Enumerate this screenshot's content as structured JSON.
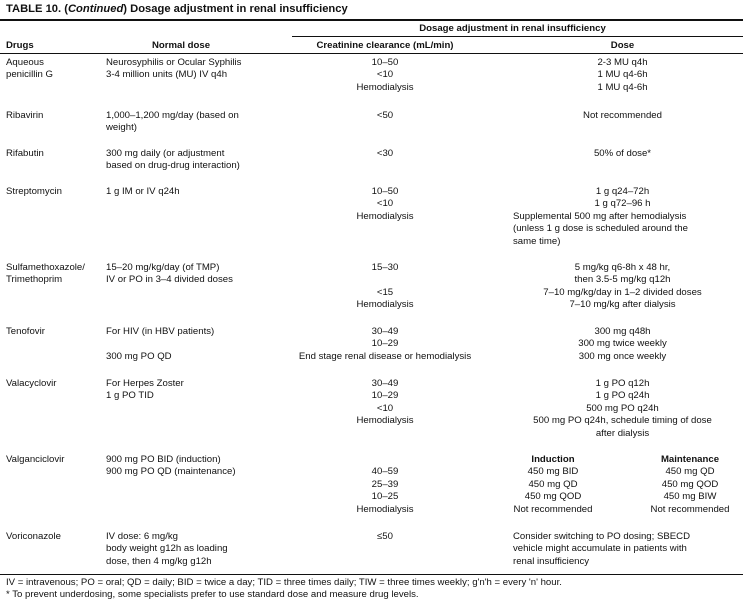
{
  "title": {
    "label": "TABLE 10.",
    "italic": "Continued",
    "rest": "Dosage adjustment in renal insufficiency"
  },
  "header": {
    "group": "Dosage adjustment in renal insufficiency",
    "drugs": "Drugs",
    "normal_dose": "Normal dose",
    "creatinine": "Creatinine clearance (mL/min)",
    "dose": "Dose"
  },
  "rows": [
    {
      "drug": [
        "Aqueous",
        "penicillin G"
      ],
      "normal": [
        "Neurosyphilis or Ocular Syphilis",
        "3-4 million units (MU) IV q4h"
      ],
      "creat": [
        "10–50",
        "<10",
        "Hemodialysis"
      ],
      "dose": [
        "2-3 MU q4h",
        "1 MU q4-6h",
        "1 MU q4-6h"
      ]
    },
    {
      "drug": [
        "Ribavirin"
      ],
      "normal": [
        "1,000–1,200 mg/day (based on",
        "weight)"
      ],
      "creat": [
        "<50"
      ],
      "dose": [
        "Not recommended"
      ]
    },
    {
      "drug": [
        "Rifabutin"
      ],
      "normal": [
        "300 mg daily (or adjustment",
        "based on drug-drug interaction)"
      ],
      "creat": [
        "<30"
      ],
      "dose": [
        "50% of dose*"
      ]
    },
    {
      "drug": [
        "Streptomycin"
      ],
      "normal": [
        "1 g IM or IV q24h"
      ],
      "creat": [
        "10–50",
        "<10",
        "Hemodialysis"
      ],
      "dose": [
        "1 g q24–72h",
        "1 g q72–96 h"
      ],
      "dose_note": [
        "Supplemental 500 mg after hemodialysis",
        "(unless 1 g dose is scheduled around the",
        "same time)"
      ]
    },
    {
      "drug": [
        "Sulfamethoxazole/",
        "Trimethoprim"
      ],
      "normal": [
        "15–20 mg/kg/day (of TMP)",
        "IV or PO in 3–4 divided doses"
      ],
      "creat": [
        "15–30",
        "",
        "<15",
        "Hemodialysis"
      ],
      "dose": [
        "5 mg/kg q6-8h x 48 hr,",
        "then 3.5-5 mg/kg q12h",
        "7–10 mg/kg/day in 1–2 divided doses",
        "7–10 mg/kg after dialysis"
      ]
    },
    {
      "drug": [
        "Tenofovir"
      ],
      "normal": [
        "For HIV (in HBV patients)",
        "",
        "300 mg PO QD"
      ],
      "creat": [
        "30–49",
        "10–29",
        "End stage renal disease or hemodialysis"
      ],
      "dose": [
        "300 mg q48h",
        "300 mg twice weekly",
        "300 mg once weekly"
      ]
    },
    {
      "drug": [
        "Valacyclovir"
      ],
      "normal": [
        "For Herpes Zoster",
        "1 g PO TID"
      ],
      "creat": [
        "30–49",
        "10–29",
        "<10",
        "Hemodialysis"
      ],
      "dose": [
        "1 g PO q12h",
        "1 g PO q24h",
        "500 mg PO q24h",
        "500 mg PO q24h, schedule timing of dose",
        "after dialysis"
      ]
    },
    {
      "drug": [
        "Valganciclovir"
      ],
      "normal": [
        "900 mg PO BID (induction)",
        "900 mg PO QD (maintenance)"
      ],
      "creat": [
        "",
        "40–59",
        "25–39",
        "10–25",
        "Hemodialysis"
      ],
      "induction": {
        "header": "Induction",
        "values": [
          "450 mg BID",
          "450 mg QD",
          "450 mg QOD",
          "Not recommended"
        ]
      },
      "maintenance": {
        "header": "Maintenance",
        "values": [
          "450 mg QD",
          "450 mg QOD",
          "450 mg BIW",
          "Not recommended"
        ]
      }
    },
    {
      "drug": [
        "Voriconazole"
      ],
      "normal": [
        "IV dose: 6 mg/kg",
        "body weight g12h as loading",
        "dose, then 4 mg/kg g12h"
      ],
      "creat": [
        "≤50"
      ],
      "dose_note": [
        "Consider switching to PO dosing; SBECD",
        "vehicle might accumulate in patients with",
        "renal insufficiency"
      ]
    }
  ],
  "footnotes": [
    "IV = intravenous; PO = oral; QD = daily; BID = twice a day; TID = three times daily; TIW = three times weekly; g'n'h = every 'n' hour.",
    "* To prevent underdosing, some specialists prefer to use standard dose and measure drug levels."
  ]
}
